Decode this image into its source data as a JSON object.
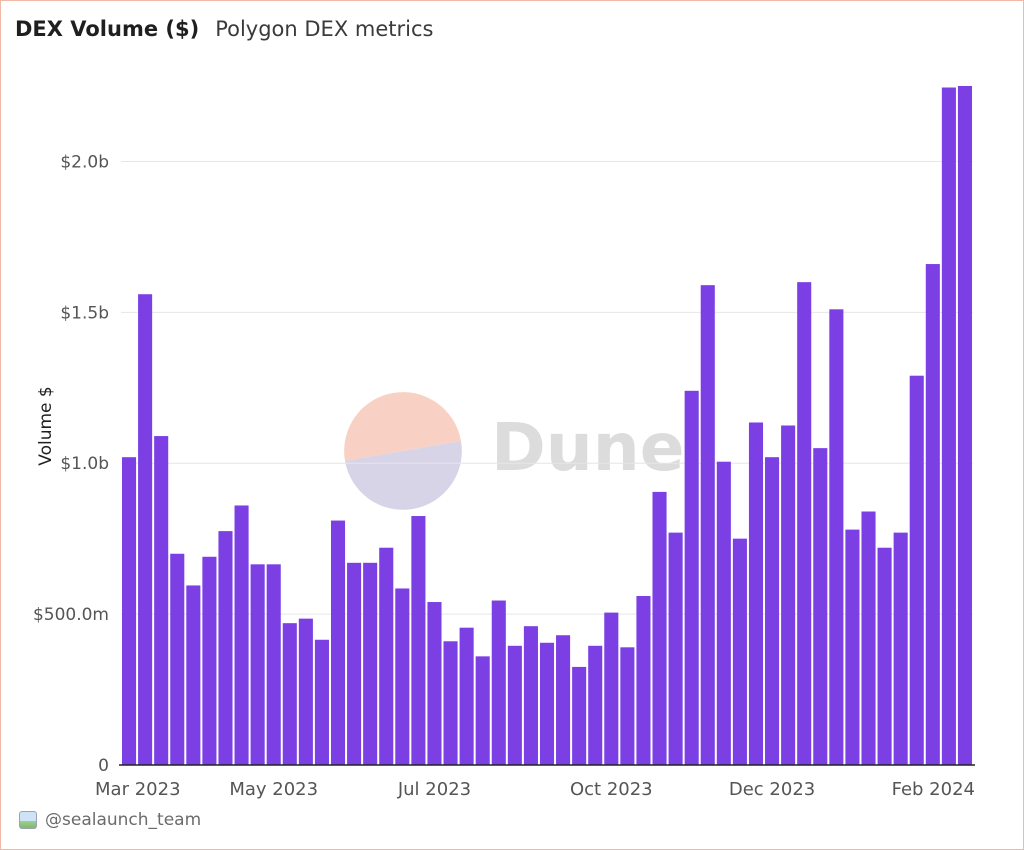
{
  "header": {
    "title": "DEX Volume ($)",
    "subtitle": "Polygon DEX metrics"
  },
  "watermark": {
    "text": "Dune"
  },
  "footer": {
    "handle": "@sealaunch_team",
    "avatar_icon": "user-avatar-icon"
  },
  "colors": {
    "bar": "#7b3fe4",
    "grid": "#e6e6e6",
    "axis": "#222222",
    "tick_text": "#555555",
    "frame_border": "#f2b8a8",
    "logo_top": "#f9d0c4",
    "logo_bottom": "#d8d4e8",
    "watermark_text": "#dcdcdc"
  },
  "chart_data": {
    "type": "bar",
    "title": "DEX Volume ($)",
    "subtitle": "Polygon DEX metrics",
    "xlabel": "",
    "ylabel": "Volume $",
    "ylim": [
      0,
      2250000000
    ],
    "grid": true,
    "y_ticks": [
      {
        "value": 0,
        "label": "0"
      },
      {
        "value": 500000000,
        "label": "$500.0m"
      },
      {
        "value": 1000000000,
        "label": "$1.0b"
      },
      {
        "value": 1500000000,
        "label": "$1.5b"
      },
      {
        "value": 2000000000,
        "label": "$2.0b"
      }
    ],
    "x_ticks": [
      {
        "index": 0,
        "label": "Mar 2023"
      },
      {
        "index": 9,
        "label": "May 2023"
      },
      {
        "index": 19,
        "label": "Jul 2023"
      },
      {
        "index": 30,
        "label": "Oct 2023"
      },
      {
        "index": 40,
        "label": "Dec 2023"
      },
      {
        "index": 51,
        "label": "Feb 2024"
      }
    ],
    "series": [
      {
        "name": "Volume $",
        "values": [
          1020000000,
          1560000000,
          1090000000,
          700000000,
          595000000,
          690000000,
          775000000,
          860000000,
          665000000,
          665000000,
          470000000,
          485000000,
          415000000,
          810000000,
          670000000,
          670000000,
          720000000,
          585000000,
          825000000,
          540000000,
          410000000,
          455000000,
          360000000,
          545000000,
          395000000,
          460000000,
          405000000,
          430000000,
          325000000,
          395000000,
          505000000,
          390000000,
          560000000,
          905000000,
          770000000,
          1240000000,
          1590000000,
          1005000000,
          750000000,
          1135000000,
          1020000000,
          1125000000,
          1600000000,
          1050000000,
          1510000000,
          780000000,
          840000000,
          720000000,
          770000000,
          1290000000,
          1660000000,
          2245000000,
          2250000000
        ]
      }
    ]
  }
}
